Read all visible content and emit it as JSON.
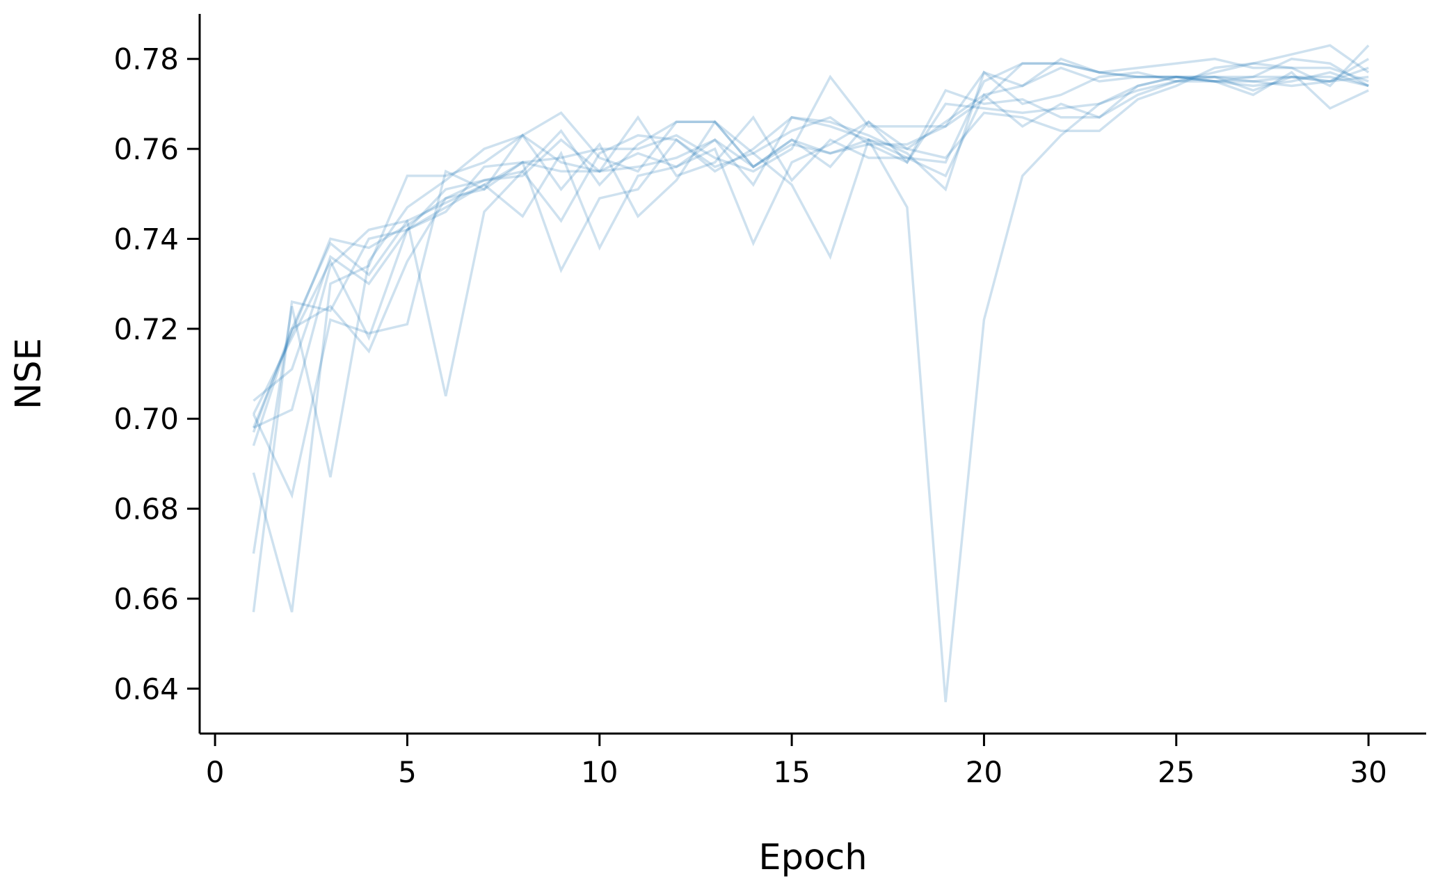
{
  "chart_data": {
    "type": "line",
    "title": "",
    "xlabel": "Epoch",
    "ylabel": "NSE",
    "xlim": [
      -0.4,
      31.5
    ],
    "ylim": [
      0.63,
      0.79
    ],
    "xticks": [
      0,
      5,
      10,
      15,
      20,
      25,
      30
    ],
    "yticks": [
      0.64,
      0.66,
      0.68,
      0.7,
      0.72,
      0.74,
      0.76,
      0.78
    ],
    "ytick_labels": [
      "0.64",
      "0.66",
      "0.68",
      "0.70",
      "0.72",
      "0.74",
      "0.76",
      "0.78"
    ],
    "grid": false,
    "legend": "none",
    "line_color": "#1f77b4",
    "line_alpha": 0.22,
    "x": [
      1,
      2,
      3,
      4,
      5,
      6,
      7,
      8,
      9,
      10,
      11,
      12,
      13,
      14,
      15,
      16,
      17,
      18,
      19,
      20,
      21,
      22,
      23,
      24,
      25,
      26,
      27,
      28,
      29,
      30
    ],
    "series": [
      {
        "values": [
          0.698,
          0.719,
          0.74,
          0.738,
          0.743,
          0.749,
          0.751,
          0.763,
          0.751,
          0.761,
          0.745,
          0.753,
          0.766,
          0.756,
          0.762,
          0.756,
          0.766,
          0.76,
          0.766,
          0.772,
          0.774,
          0.778,
          0.775,
          0.776,
          0.776,
          0.775,
          0.774,
          0.775,
          0.777,
          0.774
        ]
      },
      {
        "values": [
          0.657,
          0.726,
          0.724,
          0.74,
          0.742,
          0.746,
          0.756,
          0.757,
          0.755,
          0.755,
          0.756,
          0.758,
          0.762,
          0.756,
          0.762,
          0.759,
          0.762,
          0.747,
          0.637,
          0.722,
          0.754,
          0.763,
          0.77,
          0.774,
          0.776,
          0.776,
          0.775,
          0.774,
          0.775,
          0.78
        ]
      },
      {
        "values": [
          0.704,
          0.711,
          0.736,
          0.73,
          0.742,
          0.751,
          0.753,
          0.754,
          0.762,
          0.755,
          0.767,
          0.754,
          0.757,
          0.767,
          0.753,
          0.762,
          0.758,
          0.758,
          0.757,
          0.775,
          0.779,
          0.779,
          0.777,
          0.776,
          0.776,
          0.776,
          0.776,
          0.776,
          0.776,
          0.774
        ]
      },
      {
        "values": [
          0.67,
          0.725,
          0.687,
          0.735,
          0.747,
          0.753,
          0.76,
          0.763,
          0.768,
          0.758,
          0.755,
          0.766,
          0.766,
          0.759,
          0.764,
          0.767,
          0.761,
          0.761,
          0.765,
          0.777,
          0.774,
          0.78,
          0.777,
          0.776,
          0.776,
          0.775,
          0.776,
          0.78,
          0.779,
          0.774
        ]
      },
      {
        "values": [
          0.698,
          0.702,
          0.734,
          0.742,
          0.744,
          0.705,
          0.746,
          0.755,
          0.764,
          0.752,
          0.761,
          0.766,
          0.766,
          0.756,
          0.761,
          0.759,
          0.761,
          0.757,
          0.773,
          0.77,
          0.771,
          0.767,
          0.767,
          0.772,
          0.775,
          0.776,
          0.773,
          0.776,
          0.775,
          0.778
        ]
      },
      {
        "values": [
          0.688,
          0.657,
          0.73,
          0.734,
          0.754,
          0.754,
          0.757,
          0.763,
          0.757,
          0.755,
          0.759,
          0.756,
          0.76,
          0.739,
          0.757,
          0.761,
          0.766,
          0.757,
          0.77,
          0.769,
          0.768,
          0.769,
          0.77,
          0.773,
          0.775,
          0.775,
          0.775,
          0.776,
          0.775,
          0.776
        ]
      },
      {
        "values": [
          0.694,
          0.72,
          0.725,
          0.715,
          0.735,
          0.749,
          0.753,
          0.755,
          0.744,
          0.759,
          0.763,
          0.762,
          0.756,
          0.759,
          0.752,
          0.736,
          0.762,
          0.758,
          0.754,
          0.772,
          0.765,
          0.77,
          0.767,
          0.774,
          0.776,
          0.775,
          0.772,
          0.777,
          0.769,
          0.773
        ]
      },
      {
        "values": [
          0.701,
          0.683,
          0.722,
          0.719,
          0.721,
          0.755,
          0.751,
          0.757,
          0.733,
          0.749,
          0.751,
          0.762,
          0.755,
          0.76,
          0.767,
          0.765,
          0.762,
          0.76,
          0.758,
          0.768,
          0.767,
          0.764,
          0.764,
          0.771,
          0.774,
          0.778,
          0.779,
          0.781,
          0.783,
          0.777
        ]
      },
      {
        "values": [
          0.701,
          0.718,
          0.735,
          0.718,
          0.742,
          0.747,
          0.752,
          0.745,
          0.759,
          0.738,
          0.754,
          0.756,
          0.762,
          0.752,
          0.767,
          0.766,
          0.763,
          0.759,
          0.751,
          0.777,
          0.77,
          0.772,
          0.776,
          0.777,
          0.775,
          0.777,
          0.779,
          0.778,
          0.778,
          0.775
        ]
      },
      {
        "values": [
          0.697,
          0.72,
          0.739,
          0.732,
          0.744,
          0.748,
          0.752,
          0.757,
          0.758,
          0.76,
          0.76,
          0.763,
          0.758,
          0.755,
          0.76,
          0.776,
          0.765,
          0.765,
          0.765,
          0.771,
          0.779,
          0.779,
          0.777,
          0.778,
          0.779,
          0.78,
          0.778,
          0.778,
          0.774,
          0.783
        ]
      }
    ]
  }
}
